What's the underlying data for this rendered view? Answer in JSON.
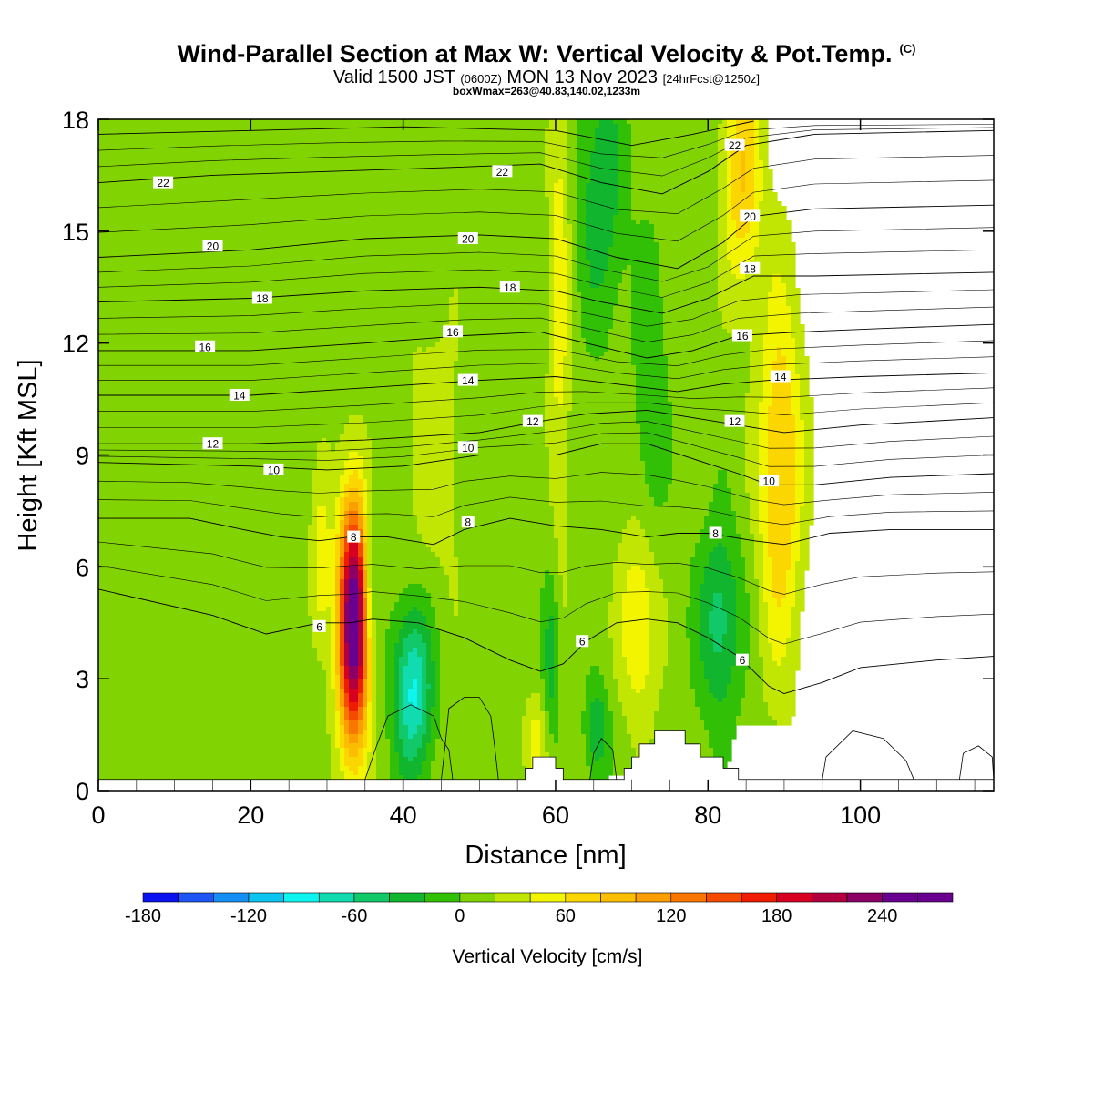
{
  "header": {
    "title": "Wind-Parallel Section at Max W: Vertical Velocity & Pot.Temp.",
    "copyright": "(C)",
    "valid_prefix": "Valid 1500 JST",
    "valid_utc": "(0600Z)",
    "valid_date": "MON 13 Nov 2023",
    "forecast": "[24hrFcst@1250z]",
    "box_info": "boxWmax=263@40.83,140.02,1233m"
  },
  "chart_data": {
    "type": "heatmap",
    "title": "Wind-Parallel Section at Max W: Vertical Velocity & Pot.Temp.",
    "xlabel": "Distance [nm]",
    "ylabel": "Height [Kft MSL]",
    "xlim": [
      0,
      117.5
    ],
    "ylim": [
      0,
      18
    ],
    "x_ticks": [
      "0",
      "20",
      "40",
      "60",
      "80",
      "100"
    ],
    "y_ticks": [
      "0",
      "3",
      "6",
      "9",
      "12",
      "15",
      "18"
    ],
    "x_tick_values": [
      0,
      20,
      40,
      60,
      80,
      100
    ],
    "y_tick_values": [
      0,
      3,
      6,
      9,
      12,
      15,
      18
    ],
    "grid": false,
    "background_w": 10,
    "updrafts": [
      {
        "x": 33.5,
        "z": 4.5,
        "w": 263,
        "sx": 1.4,
        "sz": 2.3
      },
      {
        "x": 29.2,
        "z": 6.0,
        "w": 45,
        "sx": 0.9,
        "sz": 1.6
      },
      {
        "x": 89.5,
        "z": 8.5,
        "w": 75,
        "sx": 2.0,
        "sz": 3.5
      },
      {
        "x": 84.5,
        "z": 16.5,
        "w": 70,
        "sx": 1.8,
        "sz": 2.2
      },
      {
        "x": 71.0,
        "z": 4.5,
        "w": 55,
        "sx": 1.8,
        "sz": 1.8
      },
      {
        "x": 60.5,
        "z": 13.5,
        "w": 42,
        "sx": 1.0,
        "sz": 5.0
      },
      {
        "x": 57.5,
        "z": 1.3,
        "w": 38,
        "sx": 1.1,
        "sz": 0.9
      },
      {
        "x": 44.0,
        "z": 9.0,
        "w": 20,
        "sx": 3.0,
        "sz": 3.0
      }
    ],
    "downdrafts": [
      {
        "x": 41.3,
        "z": 2.7,
        "w": -95,
        "sx": 1.8,
        "sz": 1.6
      },
      {
        "x": 35.5,
        "z": 5.5,
        "w": -50,
        "sx": 0.7,
        "sz": 1.6
      },
      {
        "x": 66.0,
        "z": 16.0,
        "w": -45,
        "sx": 2.2,
        "sz": 2.5
      },
      {
        "x": 81.5,
        "z": 4.5,
        "w": -60,
        "sx": 2.0,
        "sz": 1.8
      },
      {
        "x": 65.5,
        "z": 1.6,
        "w": -50,
        "sx": 1.1,
        "sz": 0.9
      },
      {
        "x": 59.5,
        "z": 3.6,
        "w": -45,
        "sx": 0.8,
        "sz": 1.6
      },
      {
        "x": 72.5,
        "z": 10.5,
        "w": -28,
        "sx": 1.5,
        "sz": 3.0
      }
    ],
    "terrain": [
      {
        "x": 0,
        "z": 0.3
      },
      {
        "x": 56,
        "z": 0.3
      },
      {
        "x": 56,
        "z": 0.6
      },
      {
        "x": 57,
        "z": 0.6
      },
      {
        "x": 57,
        "z": 0.9
      },
      {
        "x": 60,
        "z": 0.9
      },
      {
        "x": 60,
        "z": 0.6
      },
      {
        "x": 61,
        "z": 0.6
      },
      {
        "x": 61,
        "z": 0.3
      },
      {
        "x": 69,
        "z": 0.3
      },
      {
        "x": 69,
        "z": 0.6
      },
      {
        "x": 70,
        "z": 0.6
      },
      {
        "x": 70,
        "z": 0.9
      },
      {
        "x": 71,
        "z": 0.9
      },
      {
        "x": 71,
        "z": 1.25
      },
      {
        "x": 73,
        "z": 1.25
      },
      {
        "x": 73,
        "z": 1.6
      },
      {
        "x": 77,
        "z": 1.6
      },
      {
        "x": 77,
        "z": 1.25
      },
      {
        "x": 79,
        "z": 1.25
      },
      {
        "x": 79,
        "z": 0.9
      },
      {
        "x": 82,
        "z": 0.9
      },
      {
        "x": 82,
        "z": 0.6
      },
      {
        "x": 84,
        "z": 0.6
      },
      {
        "x": 84,
        "z": 0.3
      },
      {
        "x": 117.5,
        "z": 0.3
      }
    ],
    "theta_contours": [
      {
        "label": "6",
        "points": [
          [
            0,
            5.4
          ],
          [
            15,
            4.7
          ],
          [
            22,
            4.2
          ],
          [
            29,
            4.5
          ],
          [
            33,
            4.5
          ],
          [
            36,
            4.6
          ],
          [
            42,
            4.5
          ],
          [
            48,
            4.1
          ],
          [
            54,
            3.5
          ],
          [
            58,
            3.2
          ],
          [
            61,
            3.4
          ],
          [
            64,
            4.0
          ],
          [
            68,
            4.5
          ],
          [
            72,
            4.6
          ],
          [
            76,
            4.5
          ],
          [
            80,
            4.1
          ],
          [
            84,
            3.6
          ],
          [
            88,
            2.8
          ],
          [
            90,
            2.6
          ],
          [
            95,
            2.9
          ],
          [
            100,
            3.3
          ],
          [
            110,
            3.5
          ],
          [
            117.5,
            3.6
          ]
        ],
        "labels": [
          {
            "x": 29,
            "z": 4.4
          },
          {
            "x": 63.5,
            "z": 4.0
          },
          {
            "x": 84.5,
            "z": 3.5
          }
        ]
      },
      {
        "label": "8",
        "points": [
          [
            0,
            7.3
          ],
          [
            12,
            7.3
          ],
          [
            19,
            7.0
          ],
          [
            24,
            6.8
          ],
          [
            29,
            6.7
          ],
          [
            33,
            6.8
          ],
          [
            38,
            6.8
          ],
          [
            44,
            6.6
          ],
          [
            48,
            7.0
          ],
          [
            54,
            7.3
          ],
          [
            60,
            7.1
          ],
          [
            66,
            7.0
          ],
          [
            72,
            6.8
          ],
          [
            76,
            6.9
          ],
          [
            80,
            6.9
          ],
          [
            86,
            6.7
          ],
          [
            90,
            6.6
          ],
          [
            96,
            6.9
          ],
          [
            104,
            7.0
          ],
          [
            117.5,
            7.0
          ]
        ],
        "labels": [
          {
            "x": 33.5,
            "z": 6.8
          },
          {
            "x": 48.5,
            "z": 7.2
          },
          {
            "x": 81,
            "z": 6.9
          }
        ]
      },
      {
        "label": "10",
        "points": [
          [
            0,
            8.8
          ],
          [
            20,
            8.7
          ],
          [
            30,
            8.6
          ],
          [
            40,
            8.7
          ],
          [
            50,
            9.0
          ],
          [
            60,
            9.0
          ],
          [
            66,
            9.3
          ],
          [
            72,
            9.3
          ],
          [
            78,
            8.9
          ],
          [
            84,
            8.5
          ],
          [
            88,
            8.2
          ],
          [
            94,
            8.2
          ],
          [
            104,
            8.4
          ],
          [
            117.5,
            8.5
          ]
        ],
        "labels": [
          {
            "x": 23,
            "z": 8.6
          },
          {
            "x": 48.5,
            "z": 9.2
          },
          {
            "x": 88,
            "z": 8.3
          }
        ]
      },
      {
        "label": "12",
        "points": [
          [
            0,
            9.3
          ],
          [
            20,
            9.3
          ],
          [
            35,
            9.4
          ],
          [
            50,
            9.6
          ],
          [
            58,
            9.9
          ],
          [
            64,
            10.1
          ],
          [
            72,
            10.2
          ],
          [
            78,
            10.0
          ],
          [
            84,
            9.8
          ],
          [
            90,
            9.6
          ],
          [
            100,
            9.8
          ],
          [
            117.5,
            10.0
          ]
        ],
        "labels": [
          {
            "x": 15,
            "z": 9.3
          },
          {
            "x": 57,
            "z": 9.9
          },
          {
            "x": 83.5,
            "z": 9.9
          }
        ]
      },
      {
        "label": "14",
        "points": [
          [
            0,
            10.6
          ],
          [
            20,
            10.6
          ],
          [
            35,
            10.8
          ],
          [
            50,
            11.0
          ],
          [
            60,
            11.1
          ],
          [
            68,
            10.9
          ],
          [
            76,
            10.7
          ],
          [
            82,
            10.9
          ],
          [
            88,
            11.0
          ],
          [
            100,
            11.1
          ],
          [
            117.5,
            11.2
          ]
        ],
        "labels": [
          {
            "x": 18.5,
            "z": 10.6
          },
          {
            "x": 48.5,
            "z": 11.0
          },
          {
            "x": 89.5,
            "z": 11.1
          }
        ]
      },
      {
        "label": "16",
        "points": [
          [
            0,
            11.8
          ],
          [
            20,
            11.8
          ],
          [
            35,
            12.0
          ],
          [
            48,
            12.2
          ],
          [
            58,
            12.3
          ],
          [
            64,
            12.0
          ],
          [
            72,
            11.6
          ],
          [
            78,
            11.8
          ],
          [
            84,
            12.2
          ],
          [
            92,
            12.3
          ],
          [
            104,
            12.4
          ],
          [
            117.5,
            12.5
          ]
        ],
        "labels": [
          {
            "x": 14,
            "z": 11.9
          },
          {
            "x": 46.5,
            "z": 12.3
          },
          {
            "x": 84.5,
            "z": 12.2
          }
        ]
      },
      {
        "label": "18",
        "points": [
          [
            0,
            13.1
          ],
          [
            20,
            13.2
          ],
          [
            35,
            13.4
          ],
          [
            50,
            13.5
          ],
          [
            60,
            13.4
          ],
          [
            66,
            13.1
          ],
          [
            74,
            12.8
          ],
          [
            80,
            13.2
          ],
          [
            86,
            13.8
          ],
          [
            94,
            13.8
          ],
          [
            117.5,
            13.9
          ]
        ],
        "labels": [
          {
            "x": 21.5,
            "z": 13.2
          },
          {
            "x": 54,
            "z": 13.5
          },
          {
            "x": 85.5,
            "z": 14.0
          }
        ]
      },
      {
        "label": "20",
        "points": [
          [
            0,
            14.3
          ],
          [
            20,
            14.5
          ],
          [
            35,
            14.8
          ],
          [
            50,
            14.9
          ],
          [
            60,
            14.8
          ],
          [
            68,
            14.3
          ],
          [
            76,
            14.0
          ],
          [
            82,
            14.7
          ],
          [
            86,
            15.4
          ],
          [
            94,
            15.6
          ],
          [
            117.5,
            15.7
          ]
        ],
        "labels": [
          {
            "x": 15,
            "z": 14.6
          },
          {
            "x": 48.5,
            "z": 14.8
          },
          {
            "x": 85.5,
            "z": 15.4
          }
        ]
      },
      {
        "label": "22",
        "points": [
          [
            0,
            16.3
          ],
          [
            15,
            16.5
          ],
          [
            30,
            16.6
          ],
          [
            45,
            16.7
          ],
          [
            58,
            16.8
          ],
          [
            66,
            16.3
          ],
          [
            74,
            16.0
          ],
          [
            80,
            16.6
          ],
          [
            85,
            17.3
          ],
          [
            94,
            17.6
          ],
          [
            117.5,
            17.7
          ]
        ],
        "labels": [
          {
            "x": 8.5,
            "z": 16.3
          },
          {
            "x": 53,
            "z": 16.6
          },
          {
            "x": 83.5,
            "z": 17.3
          }
        ]
      },
      {
        "label": "",
        "points": [
          [
            0,
            17.6
          ],
          [
            20,
            17.7
          ],
          [
            40,
            17.8
          ],
          [
            60,
            17.7
          ],
          [
            70,
            17.3
          ],
          [
            78,
            17.6
          ],
          [
            86,
            17.95
          ]
        ],
        "labels": []
      }
    ],
    "low_contours": [
      {
        "points": [
          [
            35,
            0.3
          ],
          [
            36.5,
            1.2
          ],
          [
            38,
            2.0
          ],
          [
            41,
            2.3
          ],
          [
            44,
            2.0
          ],
          [
            45,
            1.4
          ],
          [
            46,
            1.1
          ],
          [
            46.5,
            0.3
          ]
        ]
      },
      {
        "points": [
          [
            45,
            0.3
          ],
          [
            45.5,
            1.2
          ],
          [
            46,
            2.2
          ],
          [
            48,
            2.5
          ],
          [
            50,
            2.5
          ],
          [
            51.5,
            2.0
          ],
          [
            52,
            1.2
          ],
          [
            52.5,
            0.3
          ]
        ]
      },
      {
        "points": [
          [
            64.5,
            0.3
          ],
          [
            65,
            1.0
          ],
          [
            66,
            1.4
          ],
          [
            67.5,
            1.1
          ],
          [
            68,
            0.3
          ]
        ]
      },
      {
        "points": [
          [
            95,
            0.3
          ],
          [
            95.5,
            0.9
          ],
          [
            99,
            1.6
          ],
          [
            103,
            1.4
          ],
          [
            106,
            0.8
          ],
          [
            107,
            0.3
          ]
        ]
      },
      {
        "points": [
          [
            113,
            0.3
          ],
          [
            113.5,
            1.0
          ],
          [
            115.5,
            1.2
          ],
          [
            117.3,
            0.9
          ],
          [
            117.5,
            0.3
          ]
        ]
      }
    ],
    "colorbar": {
      "label": "Vertical Velocity [cm/s]",
      "tick_labels": [
        "-180",
        "-120",
        "-60",
        "0",
        "60",
        "120",
        "180",
        "240"
      ],
      "tick_values": [
        -180,
        -120,
        -60,
        0,
        60,
        120,
        180,
        240
      ],
      "min": -180,
      "max": 280,
      "step": 20,
      "colors": [
        "#0a12f0",
        "#1e55f5",
        "#168ff4",
        "#0cc4f0",
        "#0ef5ef",
        "#10dcb0",
        "#11c968",
        "#11b52e",
        "#32c006",
        "#82d302",
        "#c2e603",
        "#f2f400",
        "#fcd600",
        "#fbbe00",
        "#fb9e00",
        "#f97600",
        "#f54a00",
        "#f01c00",
        "#d80020",
        "#b2003e",
        "#8c0066",
        "#6a0090"
      ]
    }
  }
}
